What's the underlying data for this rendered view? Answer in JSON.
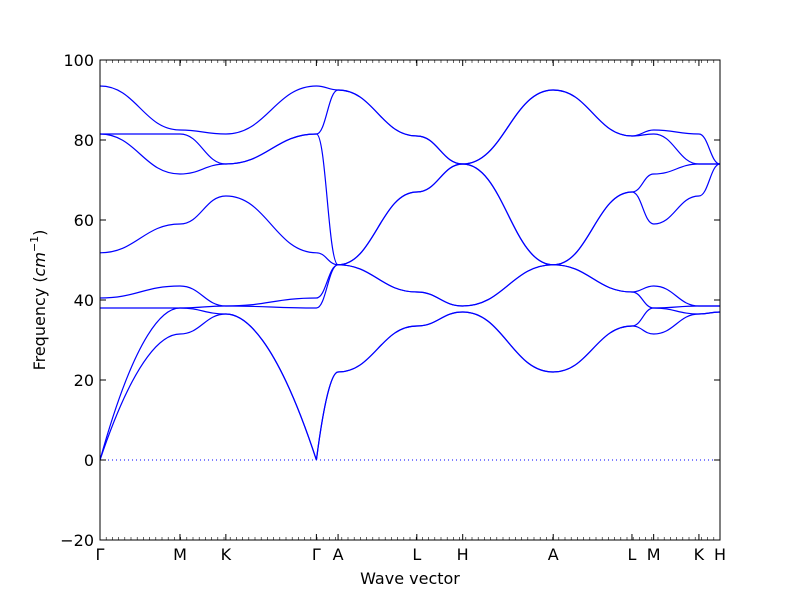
{
  "chart_data": {
    "type": "line",
    "xlabel": "Wave vector",
    "ylabel": {
      "prefix": "Frequency (",
      "unit_base": "cm",
      "unit_exponent": "−1",
      "suffix": ")"
    },
    "ylim": [
      -20,
      100
    ],
    "yticks": [
      -20,
      0,
      20,
      40,
      60,
      80,
      100
    ],
    "ytick_labels": [
      "−20",
      "0",
      "20",
      "40",
      "60",
      "80",
      "100"
    ],
    "grid": false,
    "legend": "none",
    "line_color": "#0000ff",
    "zero_line": {
      "value": 0,
      "style": "dotted",
      "color": "#0000ff"
    },
    "high_symmetry_points": [
      {
        "label": "Γ",
        "x": 0.0
      },
      {
        "label": "M",
        "x": 0.129
      },
      {
        "label": "K",
        "x": 0.203
      },
      {
        "label": "Γ",
        "x": 0.349
      },
      {
        "label": "A",
        "x": 0.384
      },
      {
        "label": "L",
        "x": 0.511
      },
      {
        "label": "H",
        "x": 0.585
      },
      {
        "label": "A",
        "x": 0.731
      },
      {
        "label": "L",
        "x": 0.858
      },
      {
        "label": "M",
        "x": 0.893
      },
      {
        "label": "K",
        "x": 0.966
      },
      {
        "label": "H",
        "x": 1.0
      }
    ],
    "branch_values": [
      [
        0.0,
        0.0,
        0.0,
        38.0,
        40.5,
        51.8,
        81.5,
        81.5,
        93.5
      ],
      [
        0.129,
        31.5,
        38.0,
        38.0,
        43.5,
        59.0,
        71.5,
        81.5,
        82.5
      ],
      [
        0.203,
        36.5,
        36.5,
        38.5,
        38.5,
        66.0,
        74.0,
        74.0,
        81.5
      ],
      [
        0.349,
        0.0,
        0.0,
        38.0,
        40.5,
        51.8,
        81.5,
        81.5,
        93.5
      ],
      [
        0.384,
        22.0,
        22.0,
        48.8,
        48.8,
        48.8,
        48.8,
        92.5,
        92.5
      ],
      [
        0.511,
        33.5,
        33.5,
        42.0,
        42.0,
        67.0,
        67.0,
        81.0,
        81.0
      ],
      [
        0.585,
        37.0,
        37.0,
        38.5,
        38.5,
        74.0,
        74.0,
        74.0,
        74.0
      ],
      [
        0.731,
        22.0,
        22.0,
        48.8,
        48.8,
        48.8,
        48.8,
        92.5,
        92.5
      ],
      [
        0.858,
        33.5,
        33.5,
        42.0,
        42.0,
        67.0,
        67.0,
        81.0,
        81.0
      ],
      [
        0.893,
        31.5,
        38.0,
        38.0,
        43.5,
        59.0,
        71.5,
        81.5,
        82.5
      ],
      [
        0.966,
        36.5,
        36.5,
        38.5,
        38.5,
        66.0,
        74.0,
        74.0,
        81.5
      ],
      [
        1.0,
        37.0,
        37.0,
        38.5,
        38.5,
        74.0,
        74.0,
        74.0,
        74.0
      ]
    ],
    "branch_endpoint_slopes": {
      "Γ_start": [
        600,
        330,
        0,
        0,
        0,
        0,
        0,
        0
      ],
      "Γ_end": [
        -600,
        -330,
        0,
        0,
        0,
        0,
        0,
        0
      ],
      "Γ_start_after": [
        0,
        0,
        0,
        0,
        0,
        0,
        0,
        0
      ],
      "Γ_to_A": [
        630,
        1400,
        0,
        0,
        0,
        0,
        0,
        0
      ]
    }
  }
}
